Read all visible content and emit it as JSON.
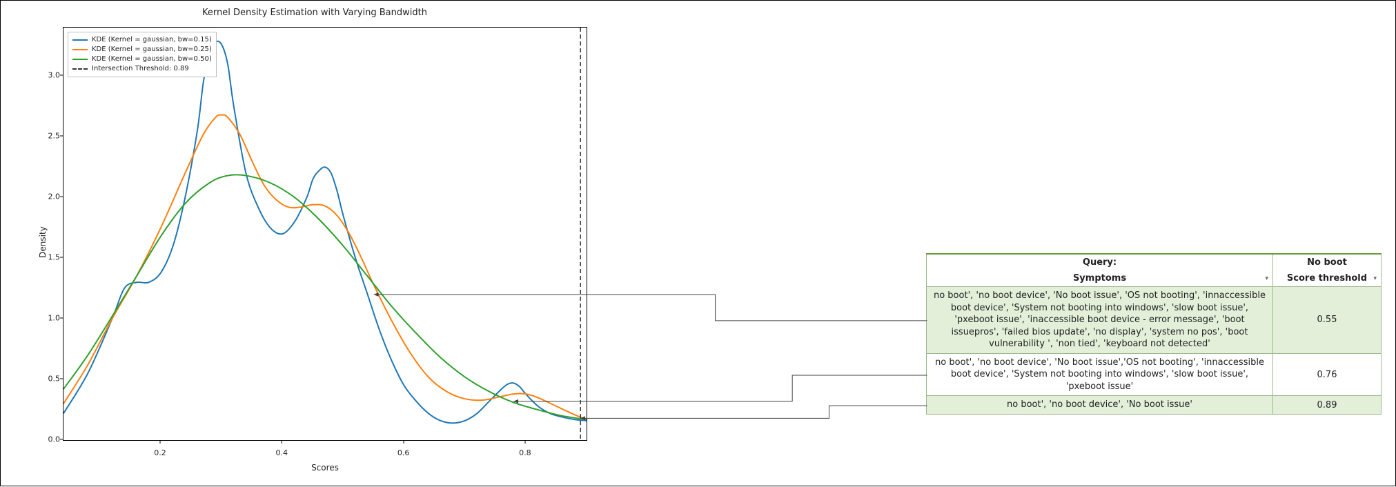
{
  "chart": {
    "title": "Kernel Density Estimation with Varying Bandwidth",
    "xlabel": "Scores",
    "ylabel": "Density",
    "xlim": [
      0.04,
      0.9
    ],
    "ylim": [
      0.0,
      3.4
    ],
    "xticks": [
      0.2,
      0.4,
      0.6,
      0.8
    ],
    "yticks": [
      0.0,
      0.5,
      1.0,
      1.5,
      2.0,
      2.5,
      3.0
    ],
    "background_color": "#ffffff",
    "border_color": "#000000",
    "tick_fontsize": 11,
    "label_fontsize": 12,
    "title_fontsize": 13,
    "line_width": 2,
    "threshold": {
      "value": 0.89,
      "style": "dashed",
      "color": "#333333",
      "label": "Intersection Threshold: 0.89"
    },
    "legend": {
      "position": "upper-left",
      "border_color": "#bfbfbf",
      "fontsize": 10,
      "items": [
        {
          "label": "KDE (Kernel = gaussian, bw=0.15)",
          "color": "#1f77b4",
          "style": "solid"
        },
        {
          "label": "KDE (Kernel = gaussian, bw=0.25)",
          "color": "#ff7f0e",
          "style": "solid"
        },
        {
          "label": "KDE (Kernel = gaussian, bw=0.50)",
          "color": "#2ca02c",
          "style": "solid"
        },
        {
          "label": "Intersection Threshold: 0.89",
          "color": "#333333",
          "style": "dashed"
        }
      ]
    },
    "series": [
      {
        "name": "bw015",
        "color": "#1f77b4",
        "points": [
          [
            0.04,
            0.22
          ],
          [
            0.08,
            0.55
          ],
          [
            0.12,
            1.0
          ],
          [
            0.14,
            1.25
          ],
          [
            0.16,
            1.3
          ],
          [
            0.18,
            1.3
          ],
          [
            0.2,
            1.38
          ],
          [
            0.22,
            1.6
          ],
          [
            0.24,
            2.0
          ],
          [
            0.26,
            2.55
          ],
          [
            0.27,
            2.95
          ],
          [
            0.28,
            3.18
          ],
          [
            0.29,
            3.28
          ],
          [
            0.3,
            3.26
          ],
          [
            0.31,
            3.1
          ],
          [
            0.32,
            2.75
          ],
          [
            0.34,
            2.2
          ],
          [
            0.36,
            1.92
          ],
          [
            0.38,
            1.75
          ],
          [
            0.4,
            1.7
          ],
          [
            0.42,
            1.8
          ],
          [
            0.44,
            2.0
          ],
          [
            0.45,
            2.15
          ],
          [
            0.46,
            2.22
          ],
          [
            0.47,
            2.25
          ],
          [
            0.48,
            2.2
          ],
          [
            0.49,
            2.05
          ],
          [
            0.5,
            1.85
          ],
          [
            0.52,
            1.5
          ],
          [
            0.54,
            1.2
          ],
          [
            0.56,
            0.9
          ],
          [
            0.58,
            0.65
          ],
          [
            0.6,
            0.45
          ],
          [
            0.62,
            0.32
          ],
          [
            0.64,
            0.22
          ],
          [
            0.66,
            0.16
          ],
          [
            0.68,
            0.14
          ],
          [
            0.7,
            0.16
          ],
          [
            0.72,
            0.22
          ],
          [
            0.74,
            0.32
          ],
          [
            0.76,
            0.42
          ],
          [
            0.77,
            0.46
          ],
          [
            0.78,
            0.47
          ],
          [
            0.79,
            0.44
          ],
          [
            0.8,
            0.38
          ],
          [
            0.82,
            0.28
          ],
          [
            0.84,
            0.22
          ],
          [
            0.86,
            0.19
          ],
          [
            0.88,
            0.17
          ],
          [
            0.9,
            0.16
          ]
        ]
      },
      {
        "name": "bw025",
        "color": "#ff7f0e",
        "points": [
          [
            0.04,
            0.3
          ],
          [
            0.08,
            0.62
          ],
          [
            0.12,
            1.0
          ],
          [
            0.16,
            1.35
          ],
          [
            0.2,
            1.75
          ],
          [
            0.24,
            2.2
          ],
          [
            0.27,
            2.52
          ],
          [
            0.29,
            2.66
          ],
          [
            0.3,
            2.68
          ],
          [
            0.31,
            2.66
          ],
          [
            0.33,
            2.52
          ],
          [
            0.35,
            2.3
          ],
          [
            0.37,
            2.1
          ],
          [
            0.39,
            1.98
          ],
          [
            0.41,
            1.92
          ],
          [
            0.43,
            1.92
          ],
          [
            0.45,
            1.94
          ],
          [
            0.47,
            1.93
          ],
          [
            0.49,
            1.85
          ],
          [
            0.51,
            1.7
          ],
          [
            0.53,
            1.5
          ],
          [
            0.55,
            1.28
          ],
          [
            0.58,
            0.98
          ],
          [
            0.61,
            0.72
          ],
          [
            0.64,
            0.52
          ],
          [
            0.67,
            0.4
          ],
          [
            0.7,
            0.34
          ],
          [
            0.73,
            0.33
          ],
          [
            0.76,
            0.36
          ],
          [
            0.78,
            0.38
          ],
          [
            0.8,
            0.38
          ],
          [
            0.82,
            0.35
          ],
          [
            0.85,
            0.28
          ],
          [
            0.88,
            0.21
          ],
          [
            0.9,
            0.17
          ]
        ]
      },
      {
        "name": "bw050",
        "color": "#2ca02c",
        "points": [
          [
            0.04,
            0.42
          ],
          [
            0.08,
            0.7
          ],
          [
            0.12,
            1.02
          ],
          [
            0.16,
            1.35
          ],
          [
            0.2,
            1.68
          ],
          [
            0.24,
            1.95
          ],
          [
            0.28,
            2.12
          ],
          [
            0.31,
            2.18
          ],
          [
            0.34,
            2.18
          ],
          [
            0.38,
            2.12
          ],
          [
            0.42,
            2.0
          ],
          [
            0.46,
            1.82
          ],
          [
            0.5,
            1.6
          ],
          [
            0.54,
            1.35
          ],
          [
            0.58,
            1.1
          ],
          [
            0.62,
            0.88
          ],
          [
            0.66,
            0.68
          ],
          [
            0.7,
            0.52
          ],
          [
            0.74,
            0.4
          ],
          [
            0.78,
            0.31
          ],
          [
            0.82,
            0.25
          ],
          [
            0.86,
            0.2
          ],
          [
            0.9,
            0.17
          ]
        ]
      }
    ]
  },
  "arrows": {
    "stroke": "#404040",
    "stroke_width": 1,
    "arrowhead_size": 6,
    "lines": [
      {
        "from_table_row": 0,
        "to_chart": [
          0.55,
          1.2
        ]
      },
      {
        "from_table_row": 1,
        "to_chart": [
          0.78,
          0.32
        ]
      },
      {
        "from_table_row": 2,
        "to_chart": [
          0.89,
          0.18
        ]
      }
    ]
  },
  "table": {
    "header_top_border": "#6a9a3f",
    "cell_border": "#9cb88c",
    "shade_color": "#e3efd9",
    "fontsize": 13,
    "query_label": "Query:",
    "value_label": "No boot",
    "col1": "Symptoms",
    "col2": "Score threshold",
    "rows": [
      {
        "shade": true,
        "symptoms": "no boot', 'no boot device', 'No boot issue', 'OS not booting', 'innaccessible boot device', 'System not booting into windows', 'slow boot issue', 'pxeboot issue', 'inaccessible boot device - error message', 'boot issuepros', 'failed bios update', 'no display', 'system no pos', 'boot vulnerability ', 'non tied', 'keyboard not detected'",
        "score": "0.55"
      },
      {
        "shade": false,
        "symptoms": "no boot', 'no boot device', 'No boot issue','OS not booting', 'innaccessible boot device', 'System not booting into windows', 'slow boot issue', 'pxeboot issue'",
        "score": "0.76"
      },
      {
        "shade": true,
        "symptoms": "no boot',  'no boot device', 'No boot issue'",
        "score": "0.89"
      }
    ]
  }
}
